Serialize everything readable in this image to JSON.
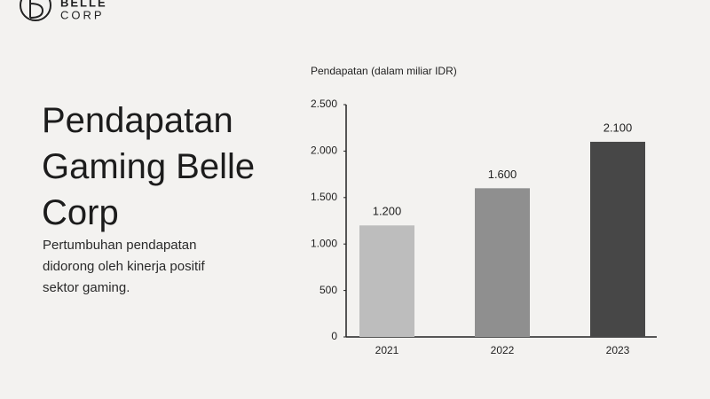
{
  "logo": {
    "line1": "BELLE",
    "line2": "CORP"
  },
  "chart_data": {
    "type": "bar",
    "title": "Pendapatan Gaming Belle Corp",
    "subtitle": "Pertumbuhan pendapatan didorong oleh kinerja positif sektor gaming.",
    "y_label": "Pendapatan (dalam miliar IDR)",
    "categories": [
      "2021",
      "2022",
      "2023"
    ],
    "values": [
      1200,
      1600,
      2100
    ],
    "value_labels": [
      "1.200",
      "1.600",
      "2.100"
    ],
    "colors": [
      "#bdbdbd",
      "#8f8f8f",
      "#474747"
    ],
    "ylim": [
      0,
      2500
    ],
    "yticks": [
      0,
      500,
      {
        "value": 1000,
        "label": "1.000"
      },
      {
        "value": 1500,
        "label": "1.500"
      },
      {
        "value": 2000,
        "label": "2.000"
      },
      {
        "value": 2500,
        "label": "2.500"
      }
    ],
    "grid": false
  }
}
